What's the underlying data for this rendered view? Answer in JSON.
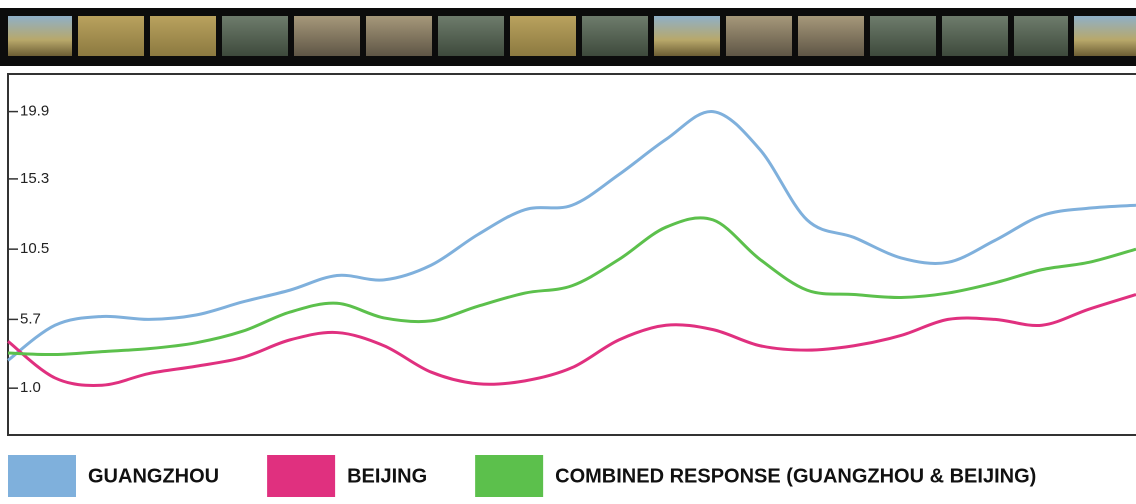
{
  "chart_data": {
    "type": "line",
    "categories": [
      null,
      null,
      null,
      null,
      null,
      null,
      null,
      null,
      null,
      null,
      null,
      null,
      null,
      null,
      null,
      null,
      null,
      null,
      null,
      null,
      null,
      null,
      null,
      null,
      null
    ],
    "series": [
      {
        "name": "GUANGZHOU",
        "color": "#7fb0dc",
        "values": [
          2.9,
          5.3,
          5.9,
          5.7,
          6.0,
          6.9,
          7.7,
          8.7,
          8.4,
          9.4,
          11.5,
          13.2,
          13.5,
          15.6,
          18.0,
          19.9,
          17.3,
          12.5,
          11.3,
          9.9,
          9.6,
          11.1,
          12.8,
          13.3,
          13.5
        ]
      },
      {
        "name": "BEIJING",
        "color": "#e0307f",
        "values": [
          4.2,
          1.7,
          1.2,
          2.0,
          2.5,
          3.1,
          4.3,
          4.8,
          3.9,
          2.1,
          1.3,
          1.5,
          2.4,
          4.3,
          5.3,
          5.0,
          3.9,
          3.6,
          3.9,
          4.6,
          5.7,
          5.7,
          5.3,
          6.4,
          7.4
        ]
      },
      {
        "name": "COMBINED RESPONSE (GUANGZHOU & BEIJING)",
        "color": "#5cc04c",
        "values": [
          3.4,
          3.3,
          3.5,
          3.7,
          4.1,
          4.9,
          6.2,
          6.8,
          5.8,
          5.6,
          6.6,
          7.5,
          8.0,
          9.8,
          12.0,
          12.5,
          9.8,
          7.7,
          7.4,
          7.2,
          7.5,
          8.2,
          9.1,
          9.6,
          10.5
        ]
      }
    ],
    "ylim": [
      -2.2,
      22.4
    ],
    "yticks": [
      {
        "value": 1,
        "label": "1.0"
      },
      5.7,
      10.5,
      15.3,
      19.9
    ],
    "legend": "bottom"
  }
}
